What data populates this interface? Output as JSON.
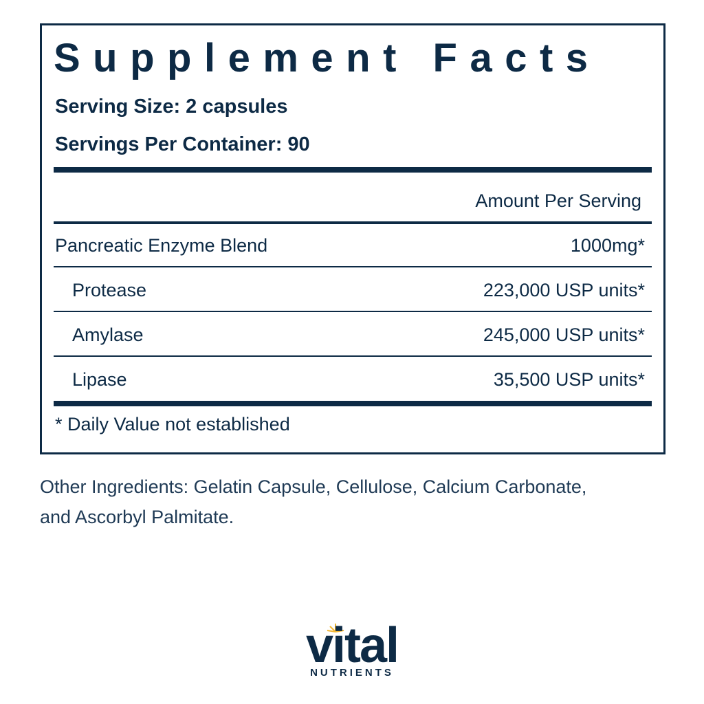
{
  "panel": {
    "title": "Supplement Facts",
    "serving_size": "Serving Size: 2 capsules",
    "servings_per_container": "Servings Per Container: 90",
    "amount_header": "Amount Per Serving",
    "rows": [
      [
        "Pancreatic Enzyme Blend",
        "1000mg*"
      ],
      [
        "Protease",
        "223,000 USP units*"
      ],
      [
        "Amylase",
        "245,000 USP units*"
      ],
      [
        "Lipase",
        "35,500 USP units*"
      ]
    ],
    "footnote": "* Daily Value not established"
  },
  "other_ingredients": [
    "Other Ingredients: Gelatin Capsule, Cellulose, Calcium Carbonate,",
    "and Ascorbyl Palmitate."
  ],
  "brand": {
    "name": "vital",
    "tagline": "NUTRIENTS"
  }
}
